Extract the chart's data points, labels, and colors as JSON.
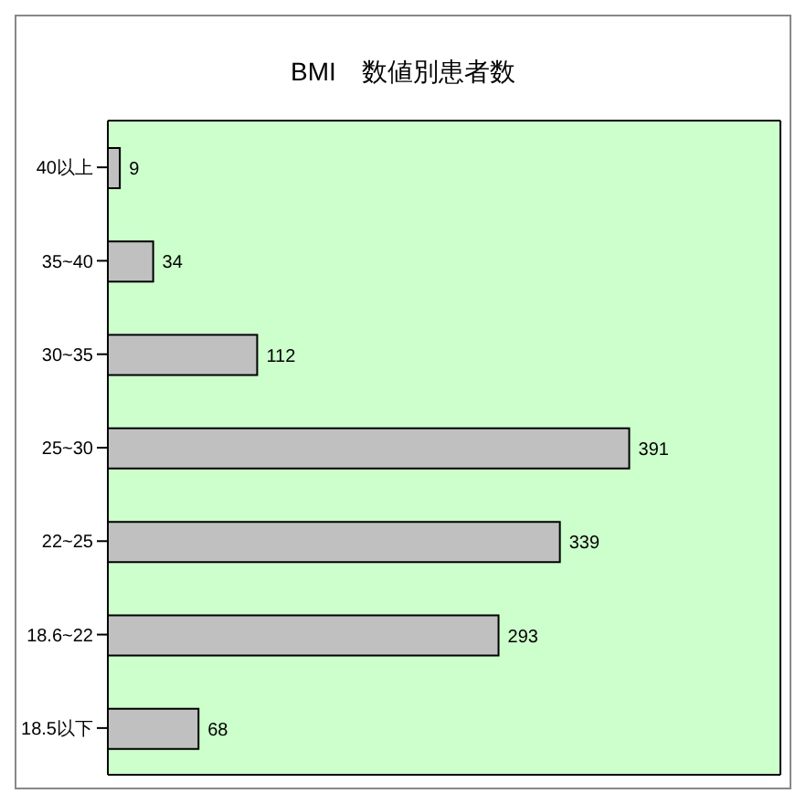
{
  "chart_data": {
    "type": "bar",
    "orientation": "horizontal",
    "title": "BMI　数値別患者数",
    "categories": [
      "40以上",
      "35~40",
      "30~35",
      "25~30",
      "22~25",
      "18.6~22",
      "18.5以下"
    ],
    "values": [
      9,
      34,
      112,
      391,
      339,
      293,
      68
    ],
    "color": "#c0c0c0",
    "data_labels": true,
    "grid": false,
    "tick_labels": "y"
  }
}
